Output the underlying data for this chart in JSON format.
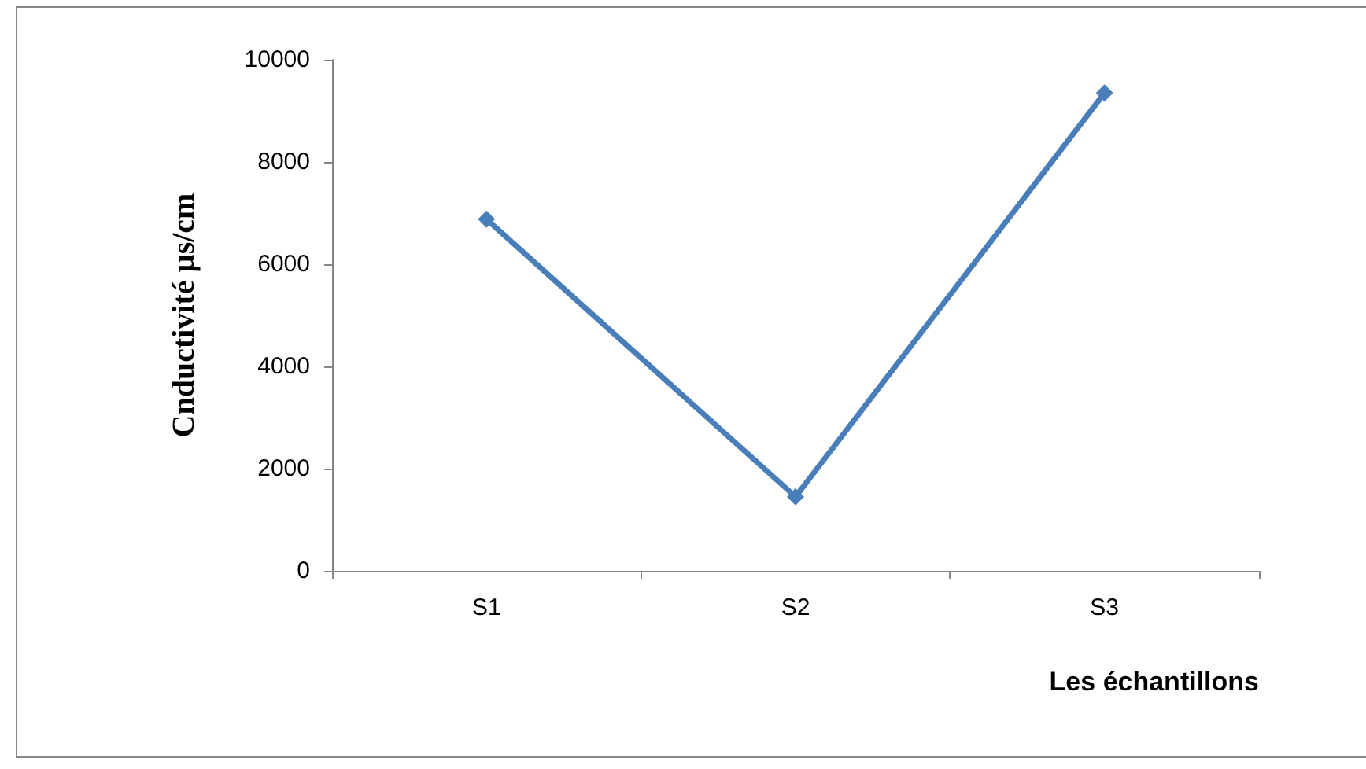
{
  "chart_data": {
    "type": "line",
    "xlabel": "Les échantillons",
    "ylabel": "Cnductivité µs/cm",
    "categories": [
      "S1",
      "S2",
      "S3"
    ],
    "series": [
      {
        "color": "#4a7ebb",
        "values": [
          6880,
          1450,
          9350
        ]
      }
    ],
    "ylim": [
      0,
      10000
    ],
    "yticks": [
      0,
      2000,
      4000,
      6000,
      8000,
      10000
    ],
    "marker": "diamond",
    "line_style": "solid"
  }
}
